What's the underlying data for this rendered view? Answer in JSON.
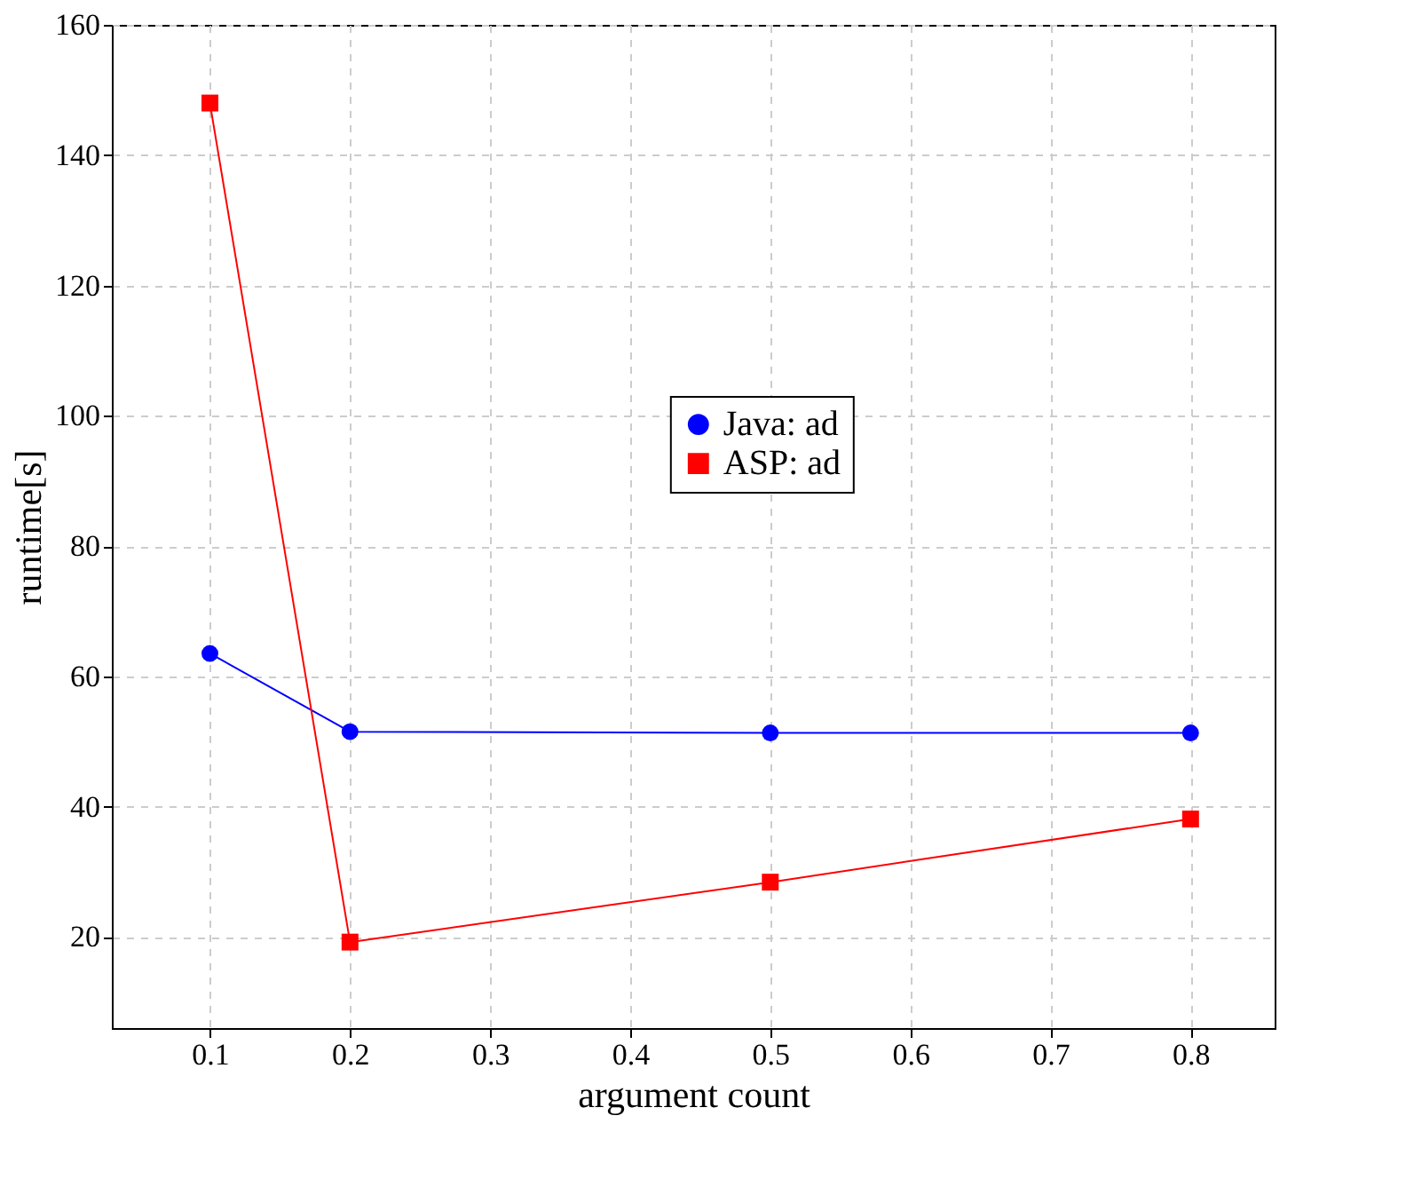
{
  "chart_data": {
    "type": "line",
    "xlabel": "argument count",
    "ylabel": "runtime[s]",
    "x": [
      0.1,
      0.2,
      0.5,
      0.8
    ],
    "series": [
      {
        "name": "Java: ad",
        "color": "#0000ff",
        "marker": "circle",
        "values": [
          63.5,
          51.5,
          51.3,
          51.3
        ]
      },
      {
        "name": "ASP: ad",
        "color": "#ff0000",
        "marker": "square",
        "values": [
          148,
          19.2,
          28.4,
          38.1
        ]
      }
    ],
    "xlim": [
      0.03,
      0.86
    ],
    "ylim": [
      6,
      160
    ],
    "xticks": [
      0.1,
      0.2,
      0.3,
      0.4,
      0.5,
      0.6,
      0.7,
      0.8
    ],
    "yticks": [
      20,
      40,
      60,
      80,
      100,
      120,
      140,
      160
    ],
    "grid": true,
    "legend": "right",
    "line_style": "solid"
  }
}
